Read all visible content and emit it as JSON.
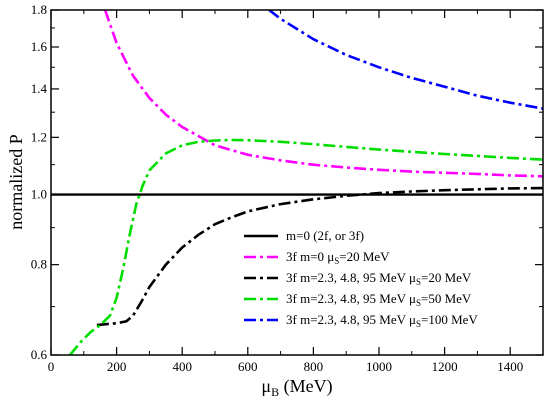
{
  "chart_data": {
    "type": "line",
    "xlabel": "μB (MeV)",
    "xlabel_main": "μ",
    "xlabel_sub": "B",
    "xlabel_rest": " (MeV)",
    "ylabel": "normalized P",
    "xlim": [
      0,
      1500
    ],
    "ylim": [
      0.6,
      1.8
    ],
    "y_scale": "log",
    "x_ticks": [
      0,
      200,
      400,
      600,
      800,
      1000,
      1200,
      1400
    ],
    "x_tick_labels": [
      "0",
      "200",
      "400",
      "600",
      "800",
      "1000",
      "1200",
      "1400"
    ],
    "y_ticks": [
      0.6,
      0.8,
      1.0,
      1.2,
      1.4,
      1.6,
      1.8
    ],
    "y_tick_labels": [
      "0.6",
      "0.8",
      "1.0",
      "1.2",
      "1.4",
      "1.6",
      "1.8"
    ],
    "grid": false,
    "legend_position": "bottom-right",
    "series": [
      {
        "name": "m=0 (2f, or 3f)",
        "name_parts": [
          "m=0 (2f, or 3f)"
        ],
        "color": "#000000",
        "style": "solid",
        "x": [
          0,
          1500
        ],
        "y": [
          1.0,
          1.0
        ]
      },
      {
        "name": "3f m=0 μS=20 MeV",
        "name_parts": [
          "3f m=0 μ",
          "S",
          "=20 MeV"
        ],
        "color": "#ff00ff",
        "style": "dashdot",
        "x": [
          165,
          200,
          250,
          300,
          350,
          400,
          500,
          600,
          700,
          800,
          900,
          1000,
          1100,
          1200,
          1300,
          1400,
          1500
        ],
        "y": [
          1.8,
          1.62,
          1.46,
          1.36,
          1.29,
          1.24,
          1.17,
          1.135,
          1.115,
          1.1,
          1.09,
          1.082,
          1.076,
          1.072,
          1.068,
          1.063,
          1.06
        ]
      },
      {
        "name": "3f m=2.3, 4.8, 95 MeV μS=20 MeV",
        "name_parts": [
          "3f m=2.3, 4.8, 95 MeV μ",
          "S",
          "=20 MeV"
        ],
        "color": "#000000",
        "style": "dashdot",
        "x": [
          140,
          170,
          200,
          230,
          250,
          275,
          300,
          350,
          400,
          450,
          500,
          550,
          600,
          700,
          800,
          900,
          1000,
          1100,
          1200,
          1300,
          1400,
          1500
        ],
        "y": [
          0.66,
          0.662,
          0.664,
          0.668,
          0.68,
          0.71,
          0.745,
          0.8,
          0.845,
          0.88,
          0.91,
          0.93,
          0.948,
          0.97,
          0.985,
          0.996,
          1.005,
          1.01,
          1.014,
          1.017,
          1.02,
          1.021
        ]
      },
      {
        "name": "3f m=2.3, 4.8, 95 MeV μS=50 MeV",
        "name_parts": [
          "3f m=2.3, 4.8, 95 MeV μ",
          "S",
          "=50 MeV"
        ],
        "color": "#00dd00",
        "style": "dashdot",
        "x": [
          58,
          90,
          120,
          150,
          180,
          200,
          220,
          240,
          260,
          280,
          300,
          350,
          400,
          450,
          500,
          550,
          600,
          700,
          800,
          900,
          1000,
          1100,
          1200,
          1300,
          1400,
          1500
        ],
        "y": [
          0.6,
          0.625,
          0.645,
          0.66,
          0.68,
          0.72,
          0.79,
          0.88,
          0.97,
          1.03,
          1.08,
          1.14,
          1.17,
          1.183,
          1.188,
          1.19,
          1.189,
          1.183,
          1.174,
          1.164,
          1.154,
          1.146,
          1.138,
          1.131,
          1.124,
          1.118
        ]
      },
      {
        "name": "3f m=2.3, 4.8, 95 MeV μS=100 MeV",
        "name_parts": [
          "3f m=2.3, 4.8, 95 MeV μ",
          "S",
          "=100 MeV"
        ],
        "color": "#0000ff",
        "style": "dashdot",
        "x": [
          665,
          700,
          800,
          900,
          1000,
          1100,
          1200,
          1300,
          1400,
          1500
        ],
        "y": [
          1.8,
          1.75,
          1.64,
          1.56,
          1.5,
          1.45,
          1.41,
          1.37,
          1.34,
          1.315
        ]
      }
    ]
  }
}
